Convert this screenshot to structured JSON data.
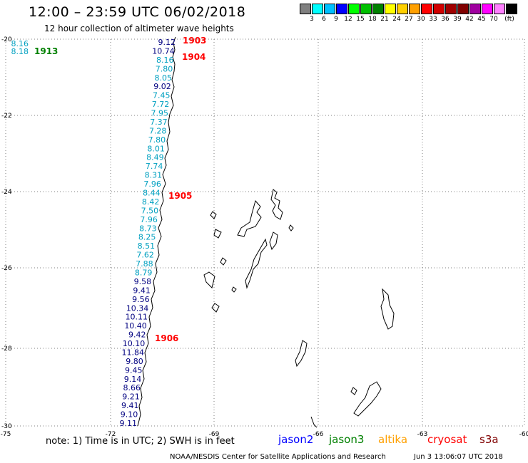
{
  "header": {
    "title": "12:00 – 23:59 UTC 06/02/2018",
    "subtitle": "12 hour collection of altimeter wave heights"
  },
  "legend": {
    "unit": "(ft)",
    "colors": [
      "#808080",
      "#00ffff",
      "#00c0ff",
      "#0000ff",
      "#00ff00",
      "#00c000",
      "#008000",
      "#ffff00",
      "#ffd000",
      "#ffa000",
      "#ff0000",
      "#d00000",
      "#a00000",
      "#800000",
      "#a000a0",
      "#ff00ff",
      "#ff80ff",
      "#000000"
    ],
    "ticks": [
      "3",
      "6",
      "9",
      "12",
      "15",
      "18",
      "21",
      "24",
      "27",
      "30",
      "33",
      "36",
      "39",
      "42",
      "45",
      "70"
    ]
  },
  "axes": {
    "lat_labels": [
      "-20",
      "-22",
      "-24",
      "-26",
      "-28",
      "-30"
    ],
    "lon_labels": [
      "-75",
      "-72",
      "-69",
      "-66",
      "-63",
      "-60"
    ]
  },
  "passes": [
    {
      "label": "1903",
      "color": "#ff0000"
    },
    {
      "label": "1904",
      "color": "#ff0000"
    },
    {
      "label": "1905",
      "color": "#ff0000"
    },
    {
      "label": "1906",
      "color": "#ff0000"
    },
    {
      "label": "1913",
      "color": "#008000"
    }
  ],
  "track_main": {
    "values": [
      "9.12",
      "10.74",
      "8.16",
      "7.80",
      "8.05",
      "9.02",
      "7.45",
      "7.72",
      "7.95",
      "7.37",
      "7.28",
      "7.80",
      "8.01",
      "8.49",
      "7.74",
      "8.31",
      "7.96",
      "8.44",
      "8.42",
      "7.50",
      "7.96",
      "8.73",
      "8.25",
      "8.51",
      "7.62",
      "7.88",
      "8.79",
      "9.58",
      "9.41",
      "9.56",
      "10.34",
      "10.11",
      "10.40",
      "9.42",
      "10.10",
      "11.84",
      "9.80",
      "9.45",
      "9.14",
      "8.66",
      "9.21",
      "9.41",
      "9.10",
      "9.11"
    ],
    "colors": [
      "#000080",
      "#000080",
      "#00a0c0",
      "#00a0c0",
      "#00a0c0",
      "#000080",
      "#00a0c0",
      "#00a0c0",
      "#00a0c0",
      "#00a0c0",
      "#00a0c0",
      "#00a0c0",
      "#00a0c0",
      "#00a0c0",
      "#00a0c0",
      "#00a0c0",
      "#00a0c0",
      "#00a0c0",
      "#00a0c0",
      "#00a0c0",
      "#00a0c0",
      "#00a0c0",
      "#00a0c0",
      "#00a0c0",
      "#00a0c0",
      "#00a0c0",
      "#00a0c0",
      "#000080",
      "#000080",
      "#000080",
      "#000080",
      "#000080",
      "#000080",
      "#000080",
      "#000080",
      "#000080",
      "#000080",
      "#000080",
      "#000080",
      "#000080",
      "#000080",
      "#000080",
      "#000080",
      "#000080"
    ]
  },
  "track_1913": {
    "values": [
      "8.16",
      "8.18"
    ],
    "color": "#00a0c0"
  },
  "footer": {
    "note": "note: 1) Time is in UTC; 2) SWH is in feet",
    "satellites": [
      {
        "name": "jason2",
        "color": "#0000ff"
      },
      {
        "name": "jason3",
        "color": "#008000"
      },
      {
        "name": "altika",
        "color": "#ffa000"
      },
      {
        "name": "cryosat",
        "color": "#ff0000"
      },
      {
        "name": "s3a",
        "color": "#800000"
      }
    ],
    "credit": "NOAA/NESDIS Center for Satellite Applications and Research",
    "timestamp": "Jun  3 13:06:07 UTC 2018"
  }
}
